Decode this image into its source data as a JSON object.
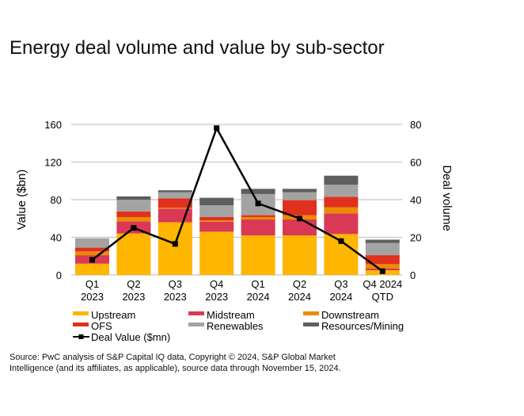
{
  "chart_data": {
    "type": "bar",
    "stacked": true,
    "title": "Energy deal volume and value by sub-sector",
    "categories": [
      [
        "Q1",
        "2023"
      ],
      [
        "Q2",
        "2023"
      ],
      [
        "Q3",
        "2023"
      ],
      [
        "Q4",
        "2023"
      ],
      [
        "Q1",
        "2024"
      ],
      [
        "Q2",
        "2024"
      ],
      [
        "Q3",
        "2024"
      ],
      [
        "Q4 2024",
        "QTD"
      ]
    ],
    "ylabel": "Value ($bn)",
    "ylim": [
      0,
      160
    ],
    "yticks": [
      "0",
      "40",
      "80",
      "120",
      "160"
    ],
    "y2label": "Deal volume",
    "y2lim": [
      0,
      80
    ],
    "y2ticks": [
      "0",
      "20",
      "40",
      "60",
      "80"
    ],
    "grid": true,
    "legend_position": "bottom",
    "series": [
      {
        "name": "Upstream",
        "color": "#FFB600",
        "values": [
          12,
          44,
          56,
          46,
          42,
          42,
          43.5,
          5
        ]
      },
      {
        "name": "Midstream",
        "color": "#D93954",
        "values": [
          9,
          13,
          14.5,
          10.5,
          17,
          17,
          22,
          2
        ]
      },
      {
        "name": "Downstream",
        "color": "#EB8C00",
        "values": [
          4,
          4.5,
          1,
          1.5,
          2.5,
          4.5,
          6.5,
          4.5
        ]
      },
      {
        "name": "OFS",
        "color": "#E0301E",
        "values": [
          4,
          6,
          10,
          3.5,
          2,
          16,
          11,
          9.5
        ]
      },
      {
        "name": "Renewables",
        "color": "#A3A3A3",
        "values": [
          10,
          12.5,
          6.5,
          12.5,
          22.5,
          8.5,
          13,
          13
        ]
      },
      {
        "name": "Resources/Mining",
        "color": "#5E5E5E",
        "values": [
          0,
          3.5,
          2,
          8,
          5.5,
          3.5,
          9.5,
          3.5
        ]
      }
    ],
    "line_series": {
      "name": "Deal Value ($mn)",
      "color": "#000000",
      "axis": "right",
      "values": [
        8,
        25,
        16.5,
        78,
        38,
        30,
        18,
        2
      ]
    }
  },
  "source": {
    "line1": "Source: PwC analysis of S&P Capital IQ data, Copyright © 2024, S&P Global Market",
    "line2": "Intelligence (and its affiliates, as applicable), source data through November 15, 2024."
  }
}
